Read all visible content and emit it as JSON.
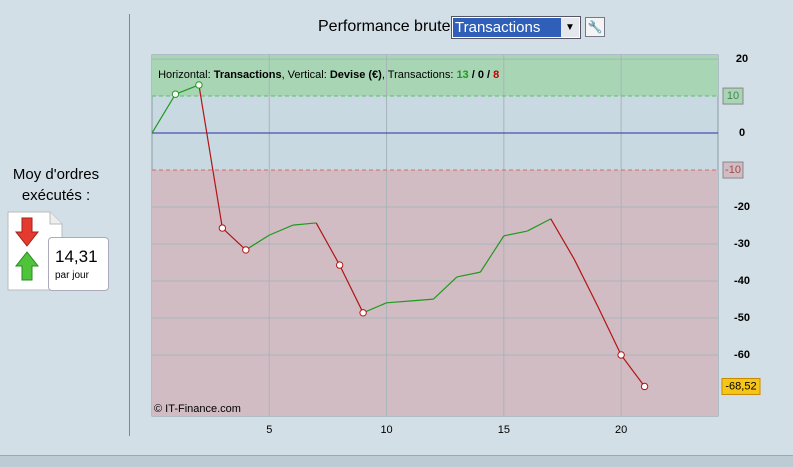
{
  "left_panel": {
    "label": "Moy d'ordres exécutés :",
    "value": "14,31",
    "unit": "par jour"
  },
  "header": {
    "title": "Performance brute",
    "select": "Transactions"
  },
  "chart_data": {
    "type": "line",
    "info": {
      "x_prefix": "Horizontal: ",
      "x_label": "Transactions",
      "y_prefix": ", Vertical: ",
      "y_label": "Devise (€)",
      "count_prefix": ", Transactions: ",
      "counts": [
        13,
        0,
        8
      ],
      "count_colors": [
        "#1a9a1a",
        "#000000",
        "#c00000"
      ],
      "separator": " / "
    },
    "credit": "© IT-Finance.com",
    "x": [
      0,
      1,
      2,
      3,
      4,
      5,
      6,
      7,
      8,
      9,
      10,
      11,
      12,
      13,
      14,
      15,
      16,
      17,
      18,
      19,
      20,
      21
    ],
    "values": [
      0,
      10.5,
      13,
      -25.7,
      -31.6,
      -27.6,
      -24.9,
      -24.3,
      -35.7,
      -48.6,
      -45.9,
      -45.4,
      -44.9,
      -38.9,
      -37.6,
      -27.8,
      -26.5,
      -23.2,
      -34.1,
      -46.8,
      -60,
      -68.52
    ],
    "marked_points": [
      1,
      2,
      3,
      4,
      8,
      9,
      20,
      21
    ],
    "rise_color": "#1f9a1f",
    "fall_color": "#b01515",
    "last_value_label": "-68,52",
    "upper_threshold": 10,
    "lower_threshold": -10,
    "xlim": [
      0,
      24.13
    ],
    "ylim": [
      -76.5,
      21.1
    ],
    "xticks": [
      5,
      10,
      15,
      20
    ],
    "yticks": [
      20,
      0,
      -20,
      -30,
      -40,
      -50,
      -60
    ],
    "grid": true
  }
}
